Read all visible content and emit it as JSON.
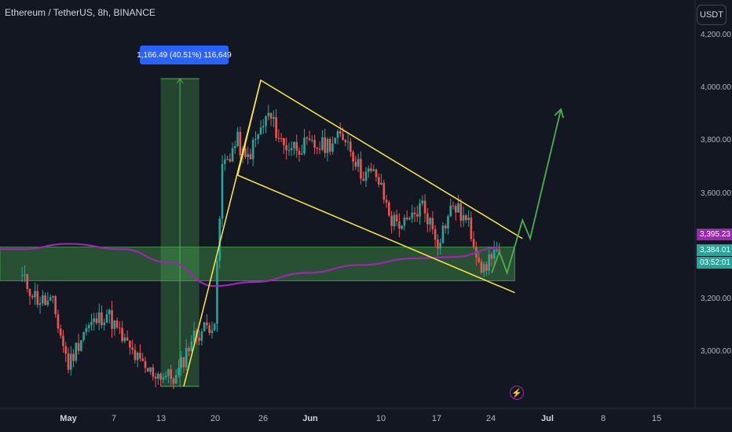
{
  "header": {
    "symbol_title": "Ethereum / TetherUS, 8h, BINANCE",
    "currency_button": "USDT"
  },
  "price_axis": {
    "ticks": [
      {
        "value": 4200,
        "label": "4,200.00"
      },
      {
        "value": 4000,
        "label": "4,000.00"
      },
      {
        "value": 3800,
        "label": "3,800.00"
      },
      {
        "value": 3600,
        "label": "3,600.00"
      },
      {
        "value": 3200,
        "label": "3,200.00"
      },
      {
        "value": 3000,
        "label": "3,000.00"
      }
    ],
    "ma_tag": "3,395.23",
    "last_price_tag": "3,384.01",
    "countdown_tag": "03:52:01"
  },
  "time_axis": {
    "ticks": [
      {
        "label": "May",
        "bold": true
      },
      {
        "label": "7"
      },
      {
        "label": "13"
      },
      {
        "label": "20"
      },
      {
        "label": "26"
      },
      {
        "label": "Jun",
        "bold": true
      },
      {
        "label": "10"
      },
      {
        "label": "17"
      },
      {
        "label": "24"
      },
      {
        "label": "Jul",
        "bold": true
      },
      {
        "label": "8"
      },
      {
        "label": "15"
      }
    ]
  },
  "measure_tool": {
    "label": "1,166.49 (40.51%) 116,649"
  },
  "colors": {
    "background": "#131722",
    "up": "#26a69a",
    "down": "#ef5350",
    "ma": "#9c27b0",
    "channel": "#ffeb3b",
    "zone": "#4caf50",
    "forecast": "#4caf50",
    "measure": "#2962ff"
  },
  "icons": {
    "event": "lightning-icon"
  },
  "chart_data": {
    "type": "candlestick",
    "title": "Ethereum / TetherUS, 8h, BINANCE",
    "ylim": [
      2830,
      4280
    ],
    "price_key_points": [
      {
        "date": "Apr 25",
        "price": 3280
      },
      {
        "date": "Apr 27",
        "price": 3200
      },
      {
        "date": "Apr 29",
        "price": 3180
      },
      {
        "date": "May 1",
        "price": 2950
      },
      {
        "date": "May 3",
        "price": 3080
      },
      {
        "date": "May 6",
        "price": 3150
      },
      {
        "date": "May 8",
        "price": 3050
      },
      {
        "date": "May 11",
        "price": 2930
      },
      {
        "date": "May 15",
        "price": 2900
      },
      {
        "date": "May 17",
        "price": 3050
      },
      {
        "date": "May 20",
        "price": 3120
      },
      {
        "date": "May 21",
        "price": 3700
      },
      {
        "date": "May 23",
        "price": 3800
      },
      {
        "date": "May 24",
        "price": 3720
      },
      {
        "date": "May 27",
        "price": 3900
      },
      {
        "date": "May 29",
        "price": 3780
      },
      {
        "date": "Jun 3",
        "price": 3780
      },
      {
        "date": "Jun 6",
        "price": 3820
      },
      {
        "date": "Jun 8",
        "price": 3680
      },
      {
        "date": "Jun 10",
        "price": 3670
      },
      {
        "date": "Jun 12",
        "price": 3500
      },
      {
        "date": "Jun 14",
        "price": 3480
      },
      {
        "date": "Jun 16",
        "price": 3560
      },
      {
        "date": "Jun 18",
        "price": 3420
      },
      {
        "date": "Jun 20",
        "price": 3560
      },
      {
        "date": "Jun 22",
        "price": 3480
      },
      {
        "date": "Jun 24",
        "price": 3300
      },
      {
        "date": "Jun 25",
        "price": 3380
      },
      {
        "date": "Jun 26",
        "price": 3384
      }
    ],
    "moving_average": [
      {
        "date": "Apr 25",
        "price": 3390
      },
      {
        "date": "May 1",
        "price": 3410
      },
      {
        "date": "May 8",
        "price": 3390
      },
      {
        "date": "May 14",
        "price": 3340
      },
      {
        "date": "May 20",
        "price": 3250
      },
      {
        "date": "May 25",
        "price": 3265
      },
      {
        "date": "Jun 1",
        "price": 3300
      },
      {
        "date": "Jun 8",
        "price": 3330
      },
      {
        "date": "Jun 15",
        "price": 3355
      },
      {
        "date": "Jun 20",
        "price": 3360
      },
      {
        "date": "Jun 26",
        "price": 3395
      }
    ],
    "support_zone": {
      "from_date": "Apr 25",
      "to_date": "Jun 28",
      "low": 3270,
      "high": 3398
    },
    "channel_upper": [
      {
        "date": "May 23",
        "price": 3670
      },
      {
        "date": "May 26",
        "price": 4030
      },
      {
        "date": "Jun 29",
        "price": 3430
      }
    ],
    "channel_lower": [
      {
        "date": "May 23",
        "price": 3670
      },
      {
        "date": "Jun 28",
        "price": 3225
      }
    ],
    "rally_line": [
      {
        "date": "May 16",
        "price": 2870
      },
      {
        "date": "May 26",
        "price": 4030
      }
    ],
    "forecast_path": [
      {
        "date": "Jun 25",
        "price": 3300
      },
      {
        "date": "Jun 26",
        "price": 3380
      },
      {
        "date": "Jun 27",
        "price": 3300
      },
      {
        "date": "Jun 29",
        "price": 3500
      },
      {
        "date": "Jun 30",
        "price": 3430
      },
      {
        "date": "Jul 4",
        "price": 3920
      }
    ],
    "measure": {
      "from_date": "May 13",
      "to_date": "May 18",
      "low": 2870,
      "high": 4036
    }
  }
}
